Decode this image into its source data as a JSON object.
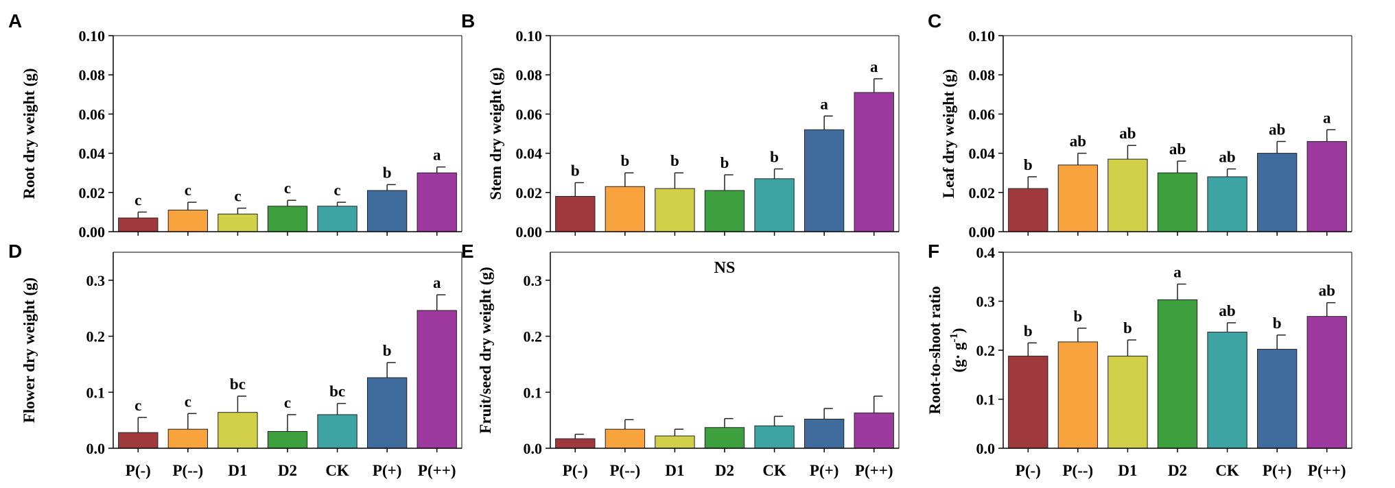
{
  "chart_data": [
    {
      "panel": "A",
      "type": "bar",
      "categories": [
        "P(-)",
        "P(--)",
        "D1",
        "D2",
        "CK",
        "P(+)",
        "P(++)"
      ],
      "ylabel": "Root dry weight (g)",
      "ylim": [
        0,
        0.1
      ],
      "ticks": [
        "0.00",
        "0.02",
        "0.04",
        "0.06",
        "0.08",
        "0.10"
      ],
      "values": [
        0.007,
        0.011,
        0.009,
        0.013,
        0.013,
        0.021,
        0.03
      ],
      "errors": [
        0.003,
        0.004,
        0.003,
        0.003,
        0.002,
        0.003,
        0.003
      ],
      "letters": [
        "c",
        "c",
        "c",
        "c",
        "c",
        "b",
        "a"
      ],
      "annotation": "",
      "show_categories": false
    },
    {
      "panel": "B",
      "type": "bar",
      "categories": [
        "P(-)",
        "P(--)",
        "D1",
        "D2",
        "CK",
        "P(+)",
        "P(++)"
      ],
      "ylabel": "Stem dry weight (g)",
      "ylim": [
        0,
        0.1
      ],
      "ticks": [
        "0.00",
        "0.02",
        "0.04",
        "0.06",
        "0.08",
        "0.10"
      ],
      "values": [
        0.018,
        0.023,
        0.022,
        0.021,
        0.027,
        0.052,
        0.071
      ],
      "errors": [
        0.007,
        0.007,
        0.008,
        0.008,
        0.005,
        0.007,
        0.007
      ],
      "letters": [
        "b",
        "b",
        "b",
        "b",
        "b",
        "a",
        "a"
      ],
      "annotation": "",
      "show_categories": false
    },
    {
      "panel": "C",
      "type": "bar",
      "categories": [
        "P(-)",
        "P(--)",
        "D1",
        "D2",
        "CK",
        "P(+)",
        "P(++)"
      ],
      "ylabel": "Leaf dry weight (g)",
      "ylim": [
        0,
        0.1
      ],
      "ticks": [
        "0.00",
        "0.02",
        "0.04",
        "0.06",
        "0.08",
        "0.10"
      ],
      "values": [
        0.022,
        0.034,
        0.037,
        0.03,
        0.028,
        0.04,
        0.046
      ],
      "errors": [
        0.006,
        0.006,
        0.007,
        0.006,
        0.004,
        0.006,
        0.006
      ],
      "letters": [
        "b",
        "ab",
        "ab",
        "ab",
        "ab",
        "ab",
        "a"
      ],
      "annotation": "",
      "show_categories": false
    },
    {
      "panel": "D",
      "type": "bar",
      "categories": [
        "P(-)",
        "P(--)",
        "D1",
        "D2",
        "CK",
        "P(+)",
        "P(++)"
      ],
      "ylabel": "Flower dry weight  (g)",
      "ylim": [
        0,
        0.35
      ],
      "ticks": [
        "0.0",
        "0.1",
        "0.2",
        "0.3"
      ],
      "values": [
        0.028,
        0.034,
        0.064,
        0.03,
        0.06,
        0.126,
        0.246
      ],
      "errors": [
        0.027,
        0.028,
        0.029,
        0.03,
        0.02,
        0.027,
        0.028
      ],
      "letters": [
        "c",
        "c",
        "bc",
        "c",
        "bc",
        "b",
        "a"
      ],
      "annotation": "",
      "show_categories": true
    },
    {
      "panel": "E",
      "type": "bar",
      "categories": [
        "P(-)",
        "P(--)",
        "D1",
        "D2",
        "CK",
        "P(+)",
        "P(++)"
      ],
      "ylabel": "Fruit/seed dry weight (g)",
      "ylim": [
        0,
        0.35
      ],
      "ticks": [
        "0.0",
        "0.1",
        "0.2",
        "0.3"
      ],
      "values": [
        0.017,
        0.034,
        0.022,
        0.037,
        0.04,
        0.052,
        0.063
      ],
      "errors": [
        0.008,
        0.017,
        0.012,
        0.016,
        0.017,
        0.019,
        0.03
      ],
      "letters": [
        "",
        "",
        "",
        "",
        "",
        "",
        ""
      ],
      "annotation": "NS",
      "show_categories": true
    },
    {
      "panel": "F",
      "type": "bar",
      "categories": [
        "P(-)",
        "P(--)",
        "D1",
        "D2",
        "CK",
        "P(+)",
        "P(++)"
      ],
      "ylabel": "Root-to-shoot ratio",
      "ylabel2": "(g· g",
      "ylabel2_sup": "-1",
      "ylabel2_end": ")",
      "ylim": [
        0,
        0.4
      ],
      "ticks": [
        "0.0",
        "0.1",
        "0.2",
        "0.3",
        "0.4"
      ],
      "values": [
        0.188,
        0.217,
        0.188,
        0.303,
        0.237,
        0.202,
        0.269
      ],
      "errors": [
        0.027,
        0.028,
        0.033,
        0.032,
        0.019,
        0.029,
        0.028
      ],
      "letters": [
        "b",
        "b",
        "b",
        "a",
        "ab",
        "b",
        "ab"
      ],
      "annotation": "",
      "show_categories": true
    }
  ],
  "colors": [
    "#a0393e",
    "#f9a33f",
    "#d2d048",
    "#3e9f3e",
    "#3ea3a3",
    "#3f6b9d",
    "#9e3a9f"
  ]
}
